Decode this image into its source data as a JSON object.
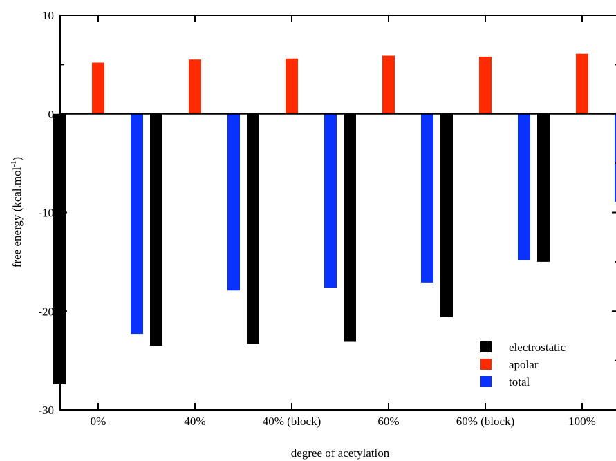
{
  "chart_data": {
    "type": "bar",
    "title": "",
    "xlabel": "degree of acetylation",
    "ylabel_main": "free energy (kcal.mol",
    "ylabel_sup": "-1",
    "ylabel_close": ")",
    "categories": [
      "0%",
      "40%",
      "40% (block)",
      "60%",
      "60% (block)",
      "100%"
    ],
    "ylim": [
      -30,
      10
    ],
    "yticks": [
      10,
      0,
      -10,
      -20,
      -30
    ],
    "yminor_ticks": [
      5,
      -5,
      -15,
      -25
    ],
    "zero_line": true,
    "grid": false,
    "legend_position": "bottom-right",
    "series": [
      {
        "name": "electrostatic",
        "color": "#000000",
        "values": [
          -27.4,
          -23.5,
          -23.3,
          -23.1,
          -20.6,
          -15.0
        ]
      },
      {
        "name": "apolar",
        "color": "#ff2a00",
        "values": [
          5.2,
          5.5,
          5.6,
          5.9,
          5.8,
          6.1
        ]
      },
      {
        "name": "total",
        "color": "#0a32ff",
        "values": [
          -22.3,
          -17.9,
          -17.6,
          -17.1,
          -14.8,
          -8.9
        ]
      }
    ]
  }
}
